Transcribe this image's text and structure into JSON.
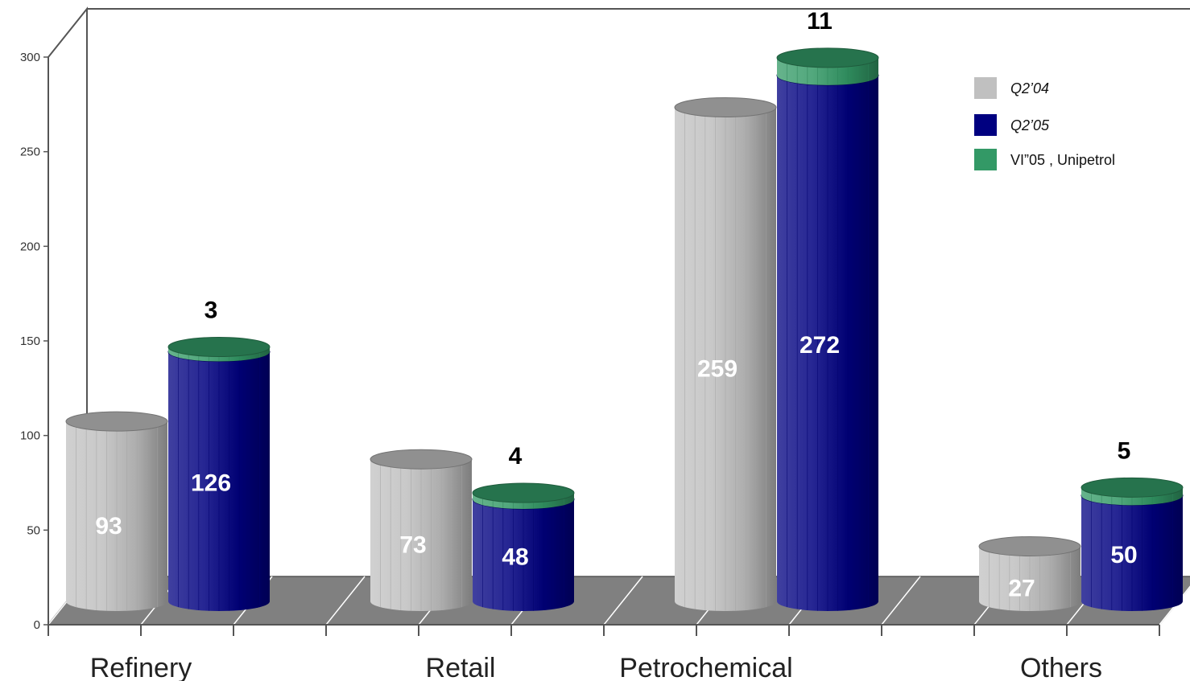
{
  "chart_data": {
    "type": "bar",
    "categories": [
      "Refinery",
      "Retail",
      "Petrochemical",
      "Others"
    ],
    "series": [
      {
        "name": "Q2’04",
        "values": [
          93,
          73,
          259,
          27
        ],
        "color": "#c0c0c0",
        "label_color": "#ffffff"
      },
      {
        "name": "Q2’05",
        "values": [
          126,
          48,
          272,
          50
        ],
        "color": "#000080",
        "label_color": "#ffffff"
      },
      {
        "name": "VI”05 , Unipetrol",
        "values": [
          3,
          4,
          11,
          5
        ],
        "color": "#339966",
        "stacked_on": "Q2’05",
        "label_color": "#000000"
      }
    ],
    "y_ticks": [
      "0",
      "50",
      "100",
      "150",
      "200",
      "250",
      "300"
    ],
    "ylim": [
      0,
      300
    ],
    "title": "",
    "xlabel": "",
    "ylabel": "",
    "grid": false,
    "legend": "top-right",
    "style": "3d-cylinder",
    "wall_color": "#ffffff",
    "floor_color": "#808080",
    "axis_color": "#555555"
  }
}
